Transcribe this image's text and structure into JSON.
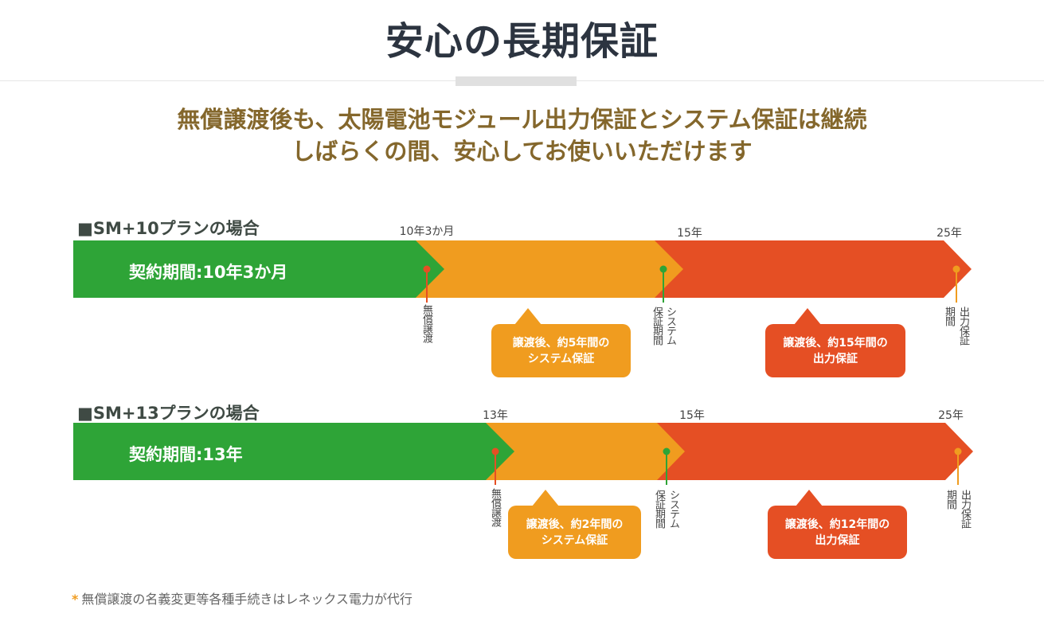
{
  "title": "安心の長期保証",
  "subtitle": {
    "line1": "無償譲渡後も、太陽電池モジュール出力保証とシステム保証は継続",
    "line2": "しばらくの間、安心してお使いいただけます"
  },
  "colors": {
    "green": "#2ea437",
    "orange": "#f09c1f",
    "red": "#e54f24"
  },
  "plans": [
    {
      "title": "■SM+10プランの場合",
      "contract_label": "契約期間:10年3か月",
      "ticks": [
        "10年3か月",
        "15年",
        "25年"
      ],
      "markers": {
        "transfer": "無償譲渡",
        "system_line1": "システム",
        "system_line2": "保証期間",
        "output_line1": "出力保証",
        "output_line2": "期間"
      },
      "callouts": {
        "system_line1": "譲渡後、約5年間の",
        "system_line2": "システム保証",
        "output_line1": "譲渡後、約15年間の",
        "output_line2": "出力保証"
      }
    },
    {
      "title": "■SM+13プランの場合",
      "contract_label": "契約期間:13年",
      "ticks": [
        "13年",
        "15年",
        "25年"
      ],
      "markers": {
        "transfer": "無償譲渡",
        "system_line1": "システム",
        "system_line2": "保証期間",
        "output_line1": "出力保証",
        "output_line2": "期間"
      },
      "callouts": {
        "system_line1": "譲渡後、約2年間の",
        "system_line2": "システム保証",
        "output_line1": "譲渡後、約12年間の",
        "output_line2": "出力保証"
      }
    }
  ],
  "footnote": {
    "star": "*",
    "text": "無償譲渡の名義変更等各種手続きはレネックス電力が代行"
  }
}
